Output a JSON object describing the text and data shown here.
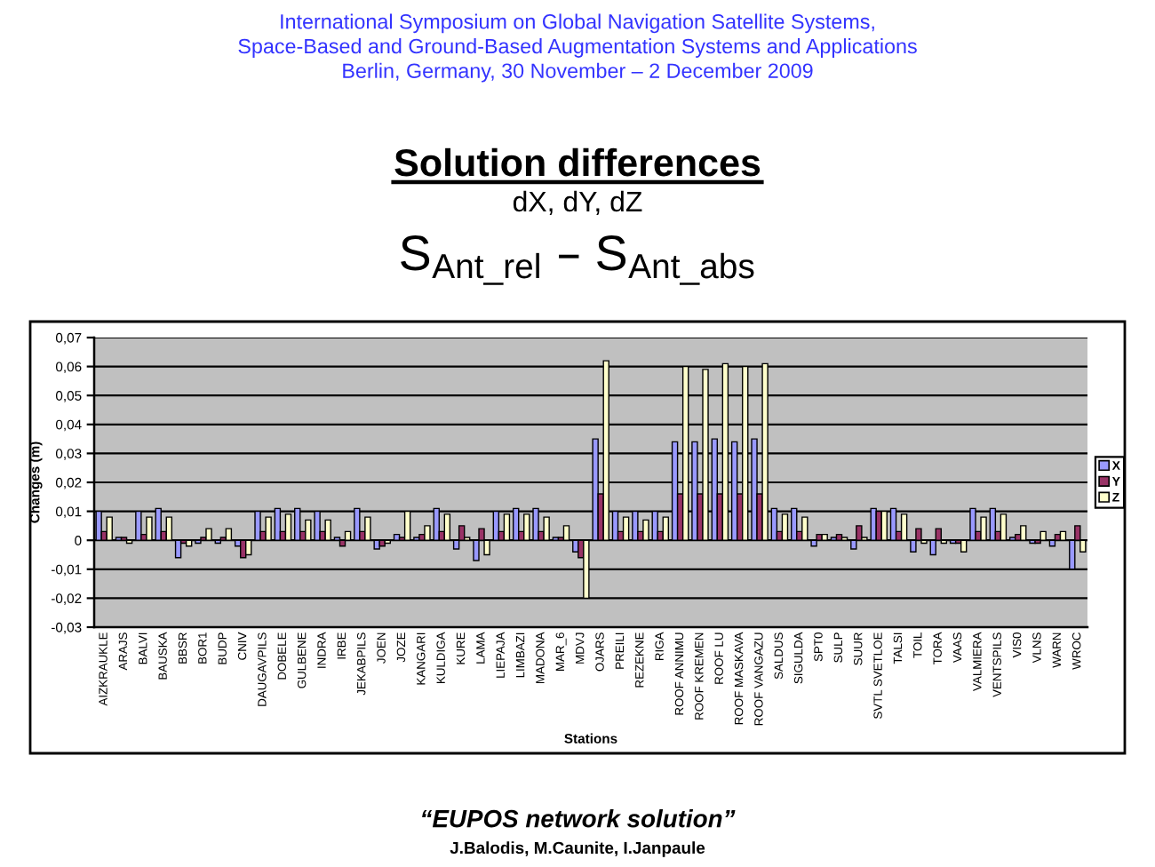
{
  "chart_data": {
    "type": "bar",
    "title": "Solution differences",
    "subtitle": "dX, dY, dZ",
    "xlabel": "Stations",
    "ylabel": "Changes (m)",
    "annotations": [
      "International Symposium on Global Navigation Satellite Systems,\nSpace-Based and Ground-Based Augmentation Systems and Applications\nBerlin, Germany, 30 November – 2 December 2009",
      "S$_{Ant_rel}$ – S$_{Ant_abs}$",
      "“EUPOS network solution”",
      "J.Balodis, M.Caunite, I.Janpaule"
    ],
    "categories": [
      "AIZKRAUKLE",
      "ARAJS",
      "BALVI",
      "BAUSKA",
      "BBSR",
      "BOR1",
      "BUDP",
      "CNIV",
      "DAUGAVPILS",
      "DOBELE",
      "GULBENE",
      "INDRA",
      "IRBE",
      "JEKABPILS",
      "JOEN",
      "JOZE",
      "KANGARI",
      "KULDIGA",
      "KURE",
      "LAMA",
      "LIEPAJA",
      "LIMBAZI",
      "MADONA",
      "MAR_6",
      "MDVJ",
      "OJARS",
      "PREILI",
      "REZEKNE",
      "RIGA",
      "ROOF ANNIMU",
      "ROOF KREMEN",
      "ROOF LU",
      "ROOF MASKAVA",
      "ROOF VANGAZU",
      "SALDUS",
      "SIGULDA",
      "SPT0",
      "SULP",
      "SUUR",
      "SVTL SVETLOE",
      "TALSI",
      "TOIL",
      "TORA",
      "VAAS",
      "VALMIERA",
      "VENTSPILS",
      "VIS0",
      "VLNS",
      "WARN",
      "WROC"
    ],
    "series": [
      {
        "name": "X",
        "color": "#9999ff",
        "values": [
          0.01,
          0.001,
          0.01,
          0.011,
          -0.006,
          -0.001,
          -0.001,
          -0.002,
          0.01,
          0.011,
          0.011,
          0.01,
          0.001,
          0.011,
          -0.003,
          0.002,
          0.001,
          0.011,
          -0.003,
          -0.007,
          0.01,
          0.011,
          0.011,
          0.001,
          -0.004,
          0.035,
          0.01,
          0.01,
          0.01,
          0.034,
          0.034,
          0.035,
          0.034,
          0.035,
          0.011,
          0.011,
          -0.002,
          0.001,
          -0.003,
          0.011,
          0.011,
          -0.004,
          -0.005,
          -0.001,
          0.011,
          0.011,
          0.001,
          -0.001,
          -0.002,
          -0.01
        ]
      },
      {
        "name": "Y",
        "color": "#993366",
        "values": [
          0.003,
          0.001,
          0.002,
          0.003,
          -0.001,
          0.001,
          0.001,
          -0.006,
          0.003,
          0.003,
          0.003,
          0.003,
          -0.002,
          0.003,
          -0.002,
          0.001,
          0.002,
          0.003,
          0.005,
          0.004,
          0.003,
          0.003,
          0.003,
          0.001,
          -0.006,
          0.016,
          0.003,
          0.003,
          0.003,
          0.016,
          0.016,
          0.016,
          0.016,
          0.016,
          0.003,
          0.003,
          0.002,
          0.002,
          0.005,
          0.01,
          0.003,
          0.004,
          0.004,
          -0.001,
          0.003,
          0.003,
          0.002,
          -0.001,
          0.002,
          0.005
        ]
      },
      {
        "name": "Z",
        "color": "#ffffcc",
        "values": [
          0.008,
          -0.001,
          0.008,
          0.008,
          -0.002,
          0.004,
          0.004,
          -0.005,
          0.008,
          0.009,
          0.007,
          0.007,
          0.003,
          0.008,
          -0.001,
          0.01,
          0.005,
          0.009,
          0.001,
          -0.005,
          0.009,
          0.009,
          0.008,
          0.005,
          -0.02,
          0.062,
          0.008,
          0.007,
          0.008,
          0.06,
          0.059,
          0.061,
          0.06,
          0.061,
          0.009,
          0.008,
          0.002,
          0.001,
          0.001,
          0.01,
          0.009,
          -0.001,
          -0.001,
          -0.004,
          0.008,
          0.009,
          0.005,
          0.003,
          0.003,
          -0.004
        ]
      }
    ],
    "ylim": [
      -0.03,
      0.07
    ],
    "yticks": [
      {
        "value": -0.03,
        "label": "-0,03"
      },
      {
        "value": -0.02,
        "label": "-0,02"
      },
      {
        "value": -0.01,
        "label": "-0,01"
      },
      0,
      {
        "value": 0.01,
        "label": "0,01"
      },
      {
        "value": 0.02,
        "label": "0,02"
      },
      {
        "value": 0.03,
        "label": "0,03"
      },
      {
        "value": 0.04,
        "label": "0,04"
      },
      {
        "value": 0.05,
        "label": "0,05"
      },
      {
        "value": 0.06,
        "label": "0,06"
      },
      {
        "value": 0.07,
        "label": "0,07"
      }
    ],
    "grid": "y",
    "legend": "right"
  }
}
